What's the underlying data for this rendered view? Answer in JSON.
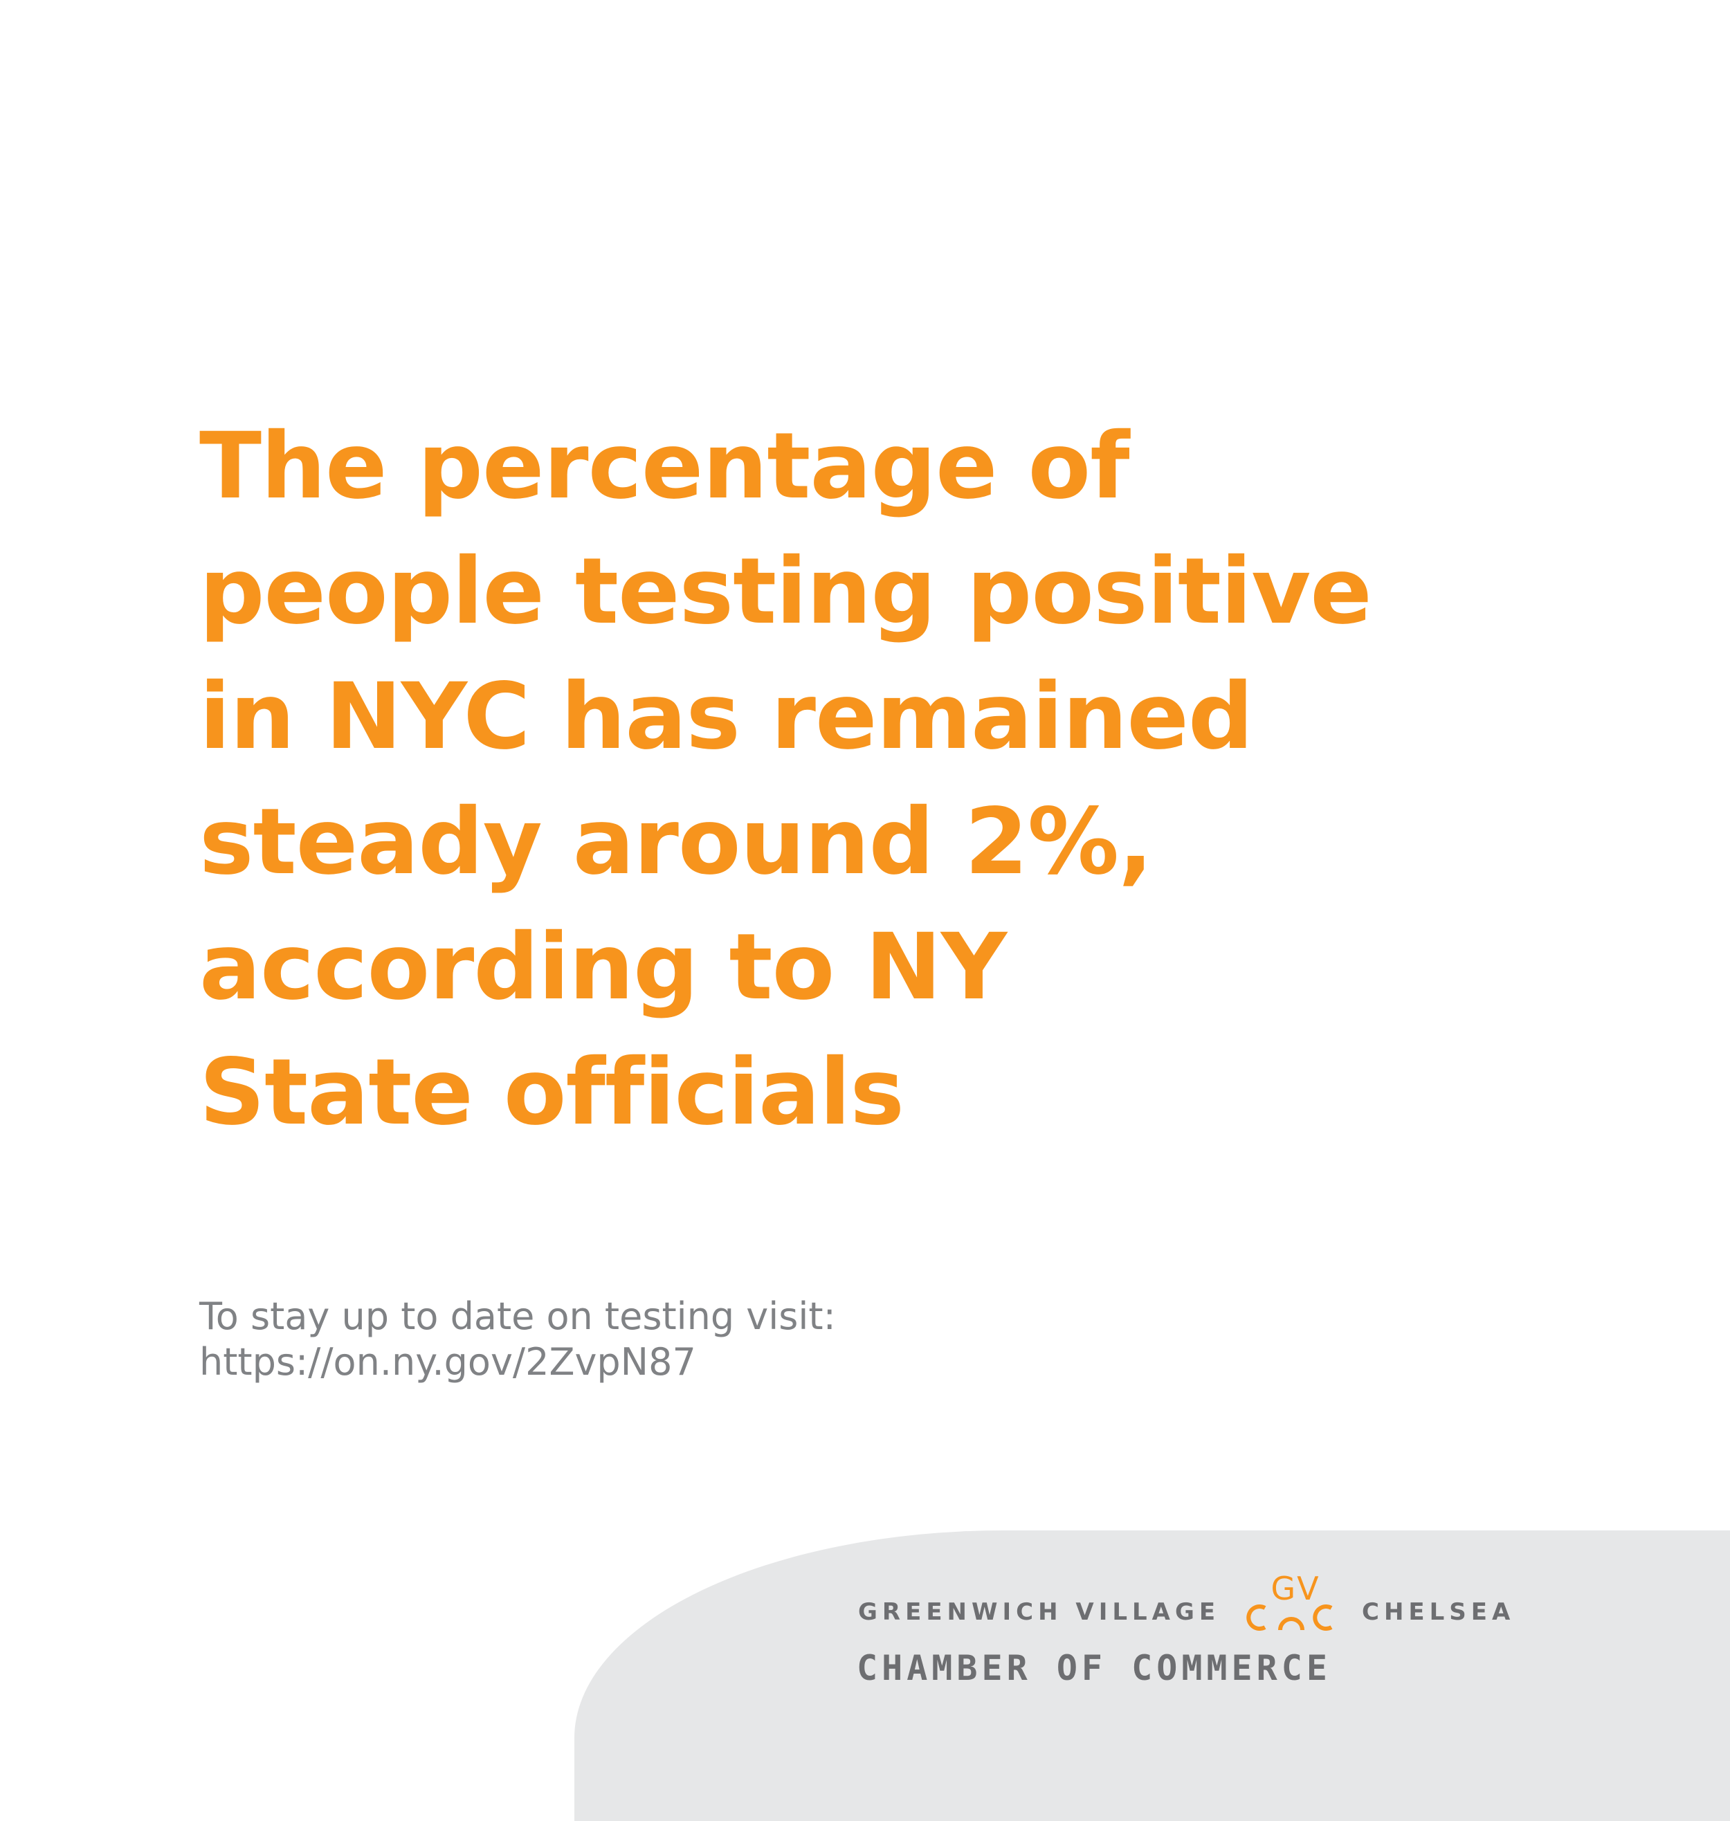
{
  "headline": {
    "lines": [
      "The percentage of",
      "people testing positive",
      "in NYC has remained",
      "steady around 2%,",
      "according to NY",
      "State officials"
    ]
  },
  "note": {
    "lines": [
      "To stay up to date on testing visit:",
      "https://on.ny.gov/2ZvpN87"
    ]
  },
  "logo": {
    "left_text": "GREENWICH VILLAGE",
    "mark_text": "GV",
    "right_text": "CHELSEA",
    "bottom_text": "CHAMBER OF COMMERCE"
  },
  "colors": {
    "accent": "#F7941D",
    "gray_text": "#808285",
    "logo_gray": "#6D6E71",
    "footer_bg": "#E6E7E8",
    "background": "#FFFFFF"
  }
}
